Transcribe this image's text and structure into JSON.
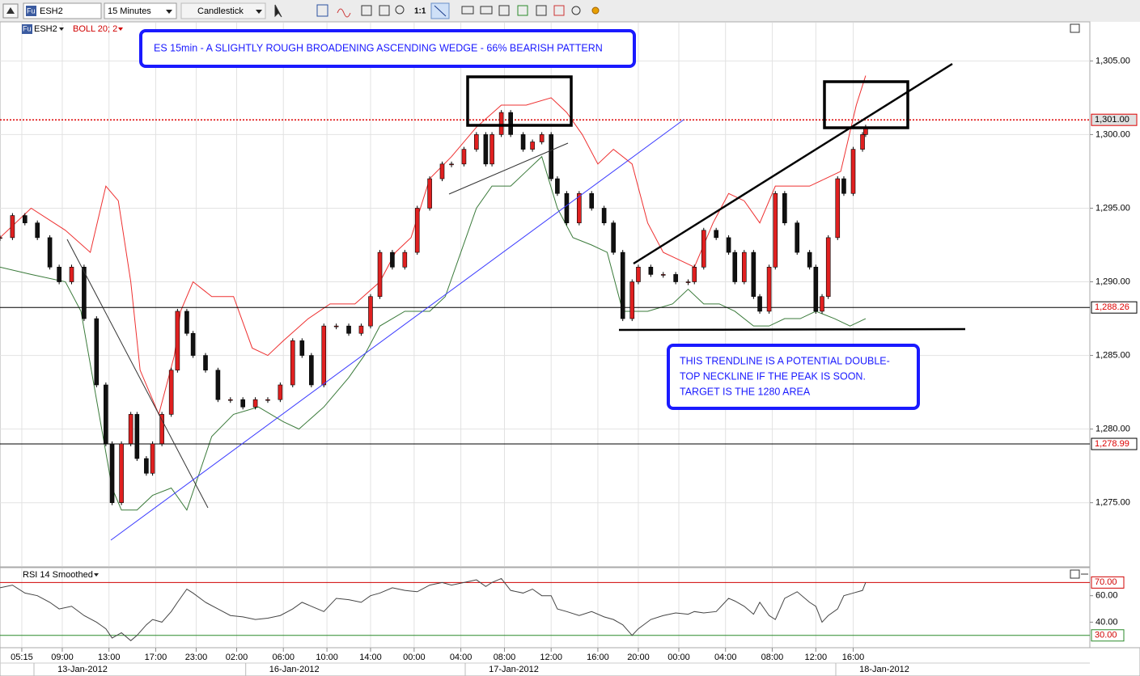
{
  "toolbar": {
    "symbol_badge": "Fu",
    "symbol": "ESH2",
    "interval": "15 Minutes",
    "style": "Candlestick",
    "zoom": "1:1"
  },
  "chart_data": [
    {
      "type": "candlestick",
      "symbol_badge": "Fu",
      "symbol": "ESH2",
      "indicator": "BOLL 20; 2",
      "annotations": [
        "ES 15min - A SLIGHTLY ROUGH BROADENING ASCENDING WEDGE - 66% BEARISH PATTERN",
        "THIS TRENDLINE IS A POTENTIAL DOUBLE-",
        "TOP NECKLINE IF THE PEAK IS SOON.",
        "TARGET IS THE 1280 AREA"
      ],
      "up_color": "#e02020",
      "down_color": "#111111",
      "x": [
        0,
        4,
        8,
        12,
        16,
        19,
        23,
        27,
        31,
        34,
        36,
        39,
        42,
        44,
        47,
        49,
        52,
        55,
        57,
        60,
        62,
        66,
        70,
        74,
        78,
        82,
        86,
        90,
        94,
        97,
        100,
        104,
        108,
        112,
        116,
        119,
        122,
        126,
        130,
        134,
        138,
        142,
        145,
        149,
        153,
        156,
        158,
        161,
        164,
        168,
        171,
        174,
        177,
        179,
        182,
        186,
        190,
        194,
        197,
        200,
        203,
        205,
        209,
        213,
        217,
        221,
        223,
        226,
        230,
        234,
        236,
        239,
        242,
        244,
        247,
        249,
        252,
        256,
        260,
        262,
        264,
        266,
        269,
        271,
        274,
        277,
        278
      ],
      "values": [
        1293,
        1294.5,
        1294,
        1293,
        1291,
        1290,
        1291,
        1287.5,
        1283,
        1279,
        1275,
        1279,
        1281,
        1278,
        1277,
        1279,
        1281,
        1284,
        1288,
        1286.5,
        1285,
        1284,
        1282,
        1282,
        1281.5,
        1282,
        1282,
        1283,
        1286,
        1285,
        1283,
        1287,
        1287,
        1286.5,
        1287,
        1289,
        1292,
        1291,
        1292,
        1295,
        1297,
        1298,
        1298,
        1299,
        1300,
        1298,
        1300,
        1301.5,
        1300,
        1299,
        1299.5,
        1300,
        1297,
        1296,
        1294,
        1296,
        1295,
        1294,
        1292,
        1287.5,
        1290,
        1291,
        1290.5,
        1290.5,
        1290,
        1290,
        1291,
        1293.5,
        1293,
        1292,
        1290,
        1292,
        1289,
        1288,
        1291,
        1296,
        1294,
        1292,
        1291,
        1288,
        1289,
        1293,
        1297,
        1296,
        1299,
        1300,
        1300.5
      ],
      "bands": [
        {
          "color": "#ee3030",
          "x": [
            0,
            10,
            21,
            29,
            34,
            38,
            42,
            45,
            51,
            56,
            58,
            62,
            68,
            75,
            81,
            86,
            91,
            99,
            106,
            114,
            122,
            127,
            132,
            138,
            145,
            153,
            161,
            169,
            177,
            182,
            187,
            192,
            197,
            203,
            208,
            213,
            218,
            223,
            229,
            234,
            239,
            244,
            249,
            255,
            260,
            265,
            270,
            275,
            278
          ],
          "values": [
            1293,
            1295,
            1293.5,
            1292,
            1296.5,
            1295.5,
            1290,
            1284,
            1281,
            1285,
            1288,
            1290,
            1289,
            1289,
            1285.5,
            1285,
            1286,
            1287.5,
            1288.5,
            1288.5,
            1290,
            1292,
            1293,
            1297,
            1298.5,
            1300.5,
            1302,
            1302,
            1302.5,
            1301.5,
            1300,
            1298,
            1299,
            1298,
            1294,
            1292,
            1291.5,
            1291,
            1294,
            1296,
            1295.5,
            1294,
            1296.5,
            1296.5,
            1296.5,
            1297,
            1297.5,
            1302,
            1304
          ]
        },
        {
          "color": "#3a7a3a",
          "x": [
            0,
            10,
            21,
            26,
            31,
            36,
            39,
            44,
            49,
            55,
            60,
            64,
            68,
            75,
            83,
            91,
            96,
            104,
            112,
            117,
            122,
            130,
            138,
            143,
            148,
            153,
            158,
            164,
            169,
            174,
            179,
            184,
            190,
            195,
            200,
            208,
            216,
            221,
            226,
            231,
            236,
            242,
            247,
            252,
            257,
            262,
            268,
            273,
            278
          ],
          "values": [
            1291,
            1290.5,
            1290,
            1288,
            1282,
            1276,
            1274.5,
            1274.5,
            1275.5,
            1276,
            1274.5,
            1277,
            1279.5,
            1281,
            1281.5,
            1280.5,
            1280,
            1281.5,
            1283.5,
            1285,
            1287,
            1288,
            1288,
            1289,
            1292,
            1295,
            1296.5,
            1296.5,
            1297.5,
            1298.5,
            1295,
            1293,
            1292.5,
            1292,
            1288,
            1288,
            1288.5,
            1289.5,
            1288.5,
            1288.5,
            1288,
            1287,
            1287,
            1287.5,
            1287.5,
            1288,
            1287.5,
            1287,
            1287.5
          ]
        }
      ],
      "xlim": [
        0,
        350
      ],
      "xticks": [
        {
          "value": 7,
          "label": "05:15"
        },
        {
          "value": 20,
          "label": "09:00"
        },
        {
          "value": 35,
          "label": "13:00"
        },
        {
          "value": 50,
          "label": "17:00"
        },
        {
          "value": 63,
          "label": "23:00"
        },
        {
          "value": 76,
          "label": "02:00"
        },
        {
          "value": 91,
          "label": "06:00"
        },
        {
          "value": 105,
          "label": "10:00"
        },
        {
          "value": 119,
          "label": "14:00"
        },
        {
          "value": 133,
          "label": "00:00"
        },
        {
          "value": 148,
          "label": "04:00"
        },
        {
          "value": 162,
          "label": "08:00"
        },
        {
          "value": 177,
          "label": "12:00"
        },
        {
          "value": 192,
          "label": "16:00"
        },
        {
          "value": 205,
          "label": "20:00"
        },
        {
          "value": 218,
          "label": "00:00"
        },
        {
          "value": 233,
          "label": "04:00"
        },
        {
          "value": 248,
          "label": "08:00"
        },
        {
          "value": 262,
          "label": "12:00"
        },
        {
          "value": 274,
          "label": "16:00"
        }
      ],
      "date_ticks": [
        {
          "value": 26.5,
          "label": "13-Jan-2012"
        },
        {
          "value": 94.5,
          "label": "16-Jan-2012"
        },
        {
          "value": 165,
          "label": "17-Jan-2012"
        },
        {
          "value": 284,
          "label": "18-Jan-2012"
        }
      ],
      "ylim": [
        1270.7,
        1307.6
      ],
      "yticks": [
        {
          "value": 1275,
          "label": "1,275.00"
        },
        {
          "value": 1280,
          "label": "1,280.00"
        },
        {
          "value": 1285,
          "label": "1,285.00"
        },
        {
          "value": 1290,
          "label": "1,290.00"
        },
        {
          "value": 1295,
          "label": "1,295.00"
        },
        {
          "value": 1300,
          "label": "1,300.00"
        },
        {
          "value": 1305,
          "label": "1,305.00"
        }
      ],
      "hlines": [
        {
          "value": 1301,
          "label": "1,301.00",
          "color": "#dd0000",
          "dashed": true,
          "label_color": "#000000",
          "label_fill": "#e0e0e0"
        },
        {
          "value": 1288.26,
          "label": "1,288.26",
          "color": "#000000",
          "dashed": false,
          "label_color": "#dd0000",
          "label_fill": "#ffffff"
        },
        {
          "value": 1278.99,
          "label": "1,278.99",
          "color": "#000000",
          "dashed": false,
          "label_color": "#dd0000",
          "label_fill": "#ffffff"
        }
      ],
      "grid": true
    },
    {
      "type": "line",
      "title": "RSI 14 Smoothed",
      "color": "#444444",
      "x": [
        0,
        4,
        8,
        12,
        16,
        19,
        23,
        27,
        31,
        34,
        36,
        39,
        42,
        44,
        47,
        49,
        52,
        55,
        57,
        60,
        62,
        66,
        70,
        74,
        78,
        82,
        86,
        90,
        94,
        97,
        100,
        104,
        108,
        112,
        116,
        119,
        122,
        126,
        130,
        134,
        138,
        142,
        145,
        149,
        153,
        156,
        158,
        161,
        164,
        168,
        171,
        174,
        177,
        179,
        182,
        186,
        190,
        194,
        197,
        200,
        203,
        205,
        209,
        213,
        217,
        221,
        223,
        226,
        230,
        234,
        236,
        239,
        242,
        244,
        247,
        249,
        252,
        256,
        260,
        262,
        264,
        266,
        269,
        271,
        274,
        277,
        278
      ],
      "values": [
        66,
        68,
        62,
        60,
        55,
        50,
        52,
        45,
        40,
        35,
        28,
        32,
        26,
        30,
        38,
        42,
        40,
        48,
        55,
        65,
        62,
        55,
        50,
        45,
        44,
        42,
        43,
        45,
        50,
        55,
        52,
        48,
        58,
        57,
        55,
        60,
        62,
        66,
        64,
        63,
        68,
        70,
        68,
        70,
        72,
        67,
        70,
        73,
        64,
        62,
        65,
        60,
        60,
        50,
        48,
        45,
        48,
        44,
        42,
        38,
        30,
        35,
        42,
        45,
        47,
        46,
        48,
        47,
        48,
        58,
        56,
        52,
        46,
        55,
        45,
        42,
        58,
        63,
        55,
        52,
        40,
        45,
        50,
        60,
        62,
        64,
        70
      ],
      "ylim": [
        21.3,
        80.6
      ],
      "yticks": [
        {
          "value": 40,
          "label": "40.00"
        },
        {
          "value": 60,
          "label": "60.00"
        }
      ],
      "levels": [
        {
          "value": 70,
          "label": "70.00",
          "color": "#d00000"
        },
        {
          "value": 30,
          "label": "30.00",
          "color": "#2a8a2a"
        }
      ]
    }
  ]
}
